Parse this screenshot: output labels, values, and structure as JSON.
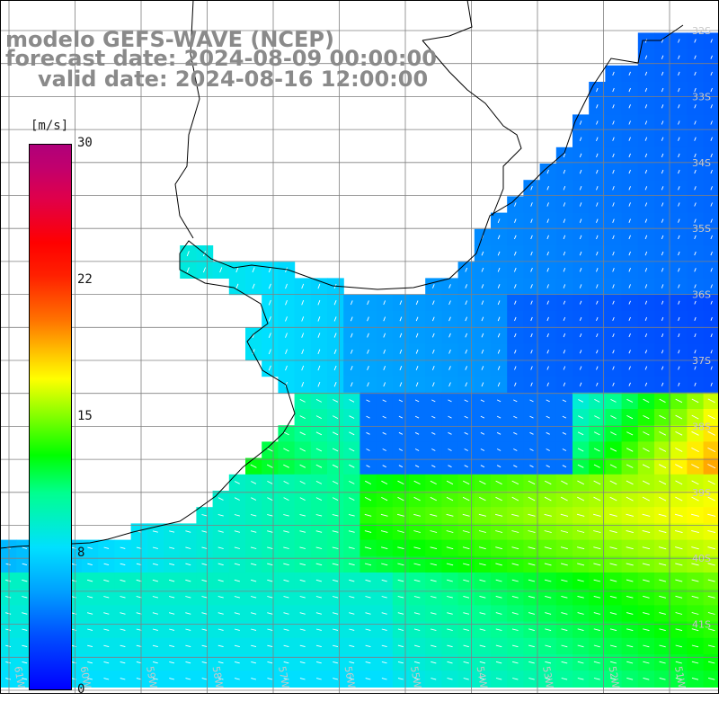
{
  "header": {
    "line1": "modelo GEFS-WAVE (NCEP)",
    "line2": "forecast date: 2024-08-09 00:00:00",
    "line3": "valid date: 2024-08-16 12:00:00"
  },
  "colorbar": {
    "unit": "[m/s]",
    "ticks": [
      "30",
      "22",
      "15",
      "8",
      "0"
    ],
    "tick_values": [
      30,
      22,
      15,
      8,
      0
    ],
    "range": [
      0,
      30
    ]
  },
  "map": {
    "lat_labels": [
      "32S",
      "33S",
      "34S",
      "35S",
      "36S",
      "37S",
      "38S",
      "39S",
      "40S",
      "41S"
    ],
    "lon_labels": [
      "61W",
      "60W",
      "59W",
      "58W",
      "57W",
      "56W",
      "55W",
      "54W",
      "53W",
      "52W",
      "51W"
    ],
    "lat_range": [
      -41.6,
      -31.4
    ],
    "lon_range": [
      -61.9,
      -50.9
    ],
    "field": "wind speed with direction arrows"
  }
}
